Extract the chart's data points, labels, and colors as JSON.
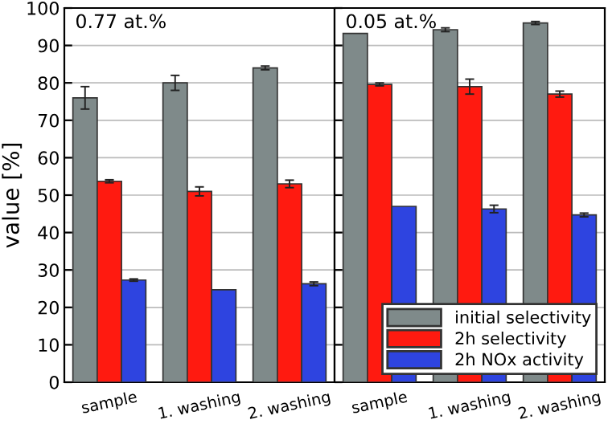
{
  "chart_data": [
    {
      "type": "bar",
      "ylabel": "value [%]",
      "annotations": [
        "0.77 at.%"
      ],
      "categories": [
        "sample",
        "1. washing",
        "2. washing"
      ],
      "series": [
        {
          "color": "#7f8a8a",
          "values": [
            76,
            80,
            84
          ],
          "errors": [
            3,
            2,
            0.5
          ]
        },
        {
          "color": "#ff1a10",
          "values": [
            53.7,
            51,
            53
          ],
          "errors": [
            0.4,
            1.2,
            1
          ]
        },
        {
          "color": "#2e44e0",
          "values": [
            27.3,
            24.7,
            26.3
          ],
          "errors": [
            0.3,
            null,
            0.5
          ]
        }
      ],
      "ylim": [
        0,
        100
      ],
      "yticks": [
        0,
        10,
        20,
        30,
        40,
        50,
        60,
        70,
        80,
        90,
        100
      ],
      "grid": "y"
    },
    {
      "type": "bar",
      "annotations": [
        "0.05 at.%"
      ],
      "categories": [
        "sample",
        "1. washing",
        "2. washing"
      ],
      "series": [
        {
          "name": "initial selectivity",
          "color": "#7f8a8a",
          "values": [
            93.2,
            94.2,
            96
          ],
          "errors": [
            null,
            0.5,
            0.4
          ]
        },
        {
          "name": "2h selectivity",
          "color": "#ff1a10",
          "values": [
            79.6,
            79,
            77
          ],
          "errors": [
            0.4,
            2,
            0.8
          ]
        },
        {
          "name": "2h NOx activity",
          "color": "#2e44e0",
          "values": [
            47,
            46.3,
            44.7
          ],
          "errors": [
            null,
            1,
            0.5
          ]
        }
      ],
      "ylim": [
        0,
        100
      ],
      "yticks": [
        0,
        10,
        20,
        30,
        40,
        50,
        60,
        70,
        80,
        90,
        100
      ],
      "tick_labels": "x",
      "grid": "y",
      "legend": "bottom right"
    }
  ]
}
